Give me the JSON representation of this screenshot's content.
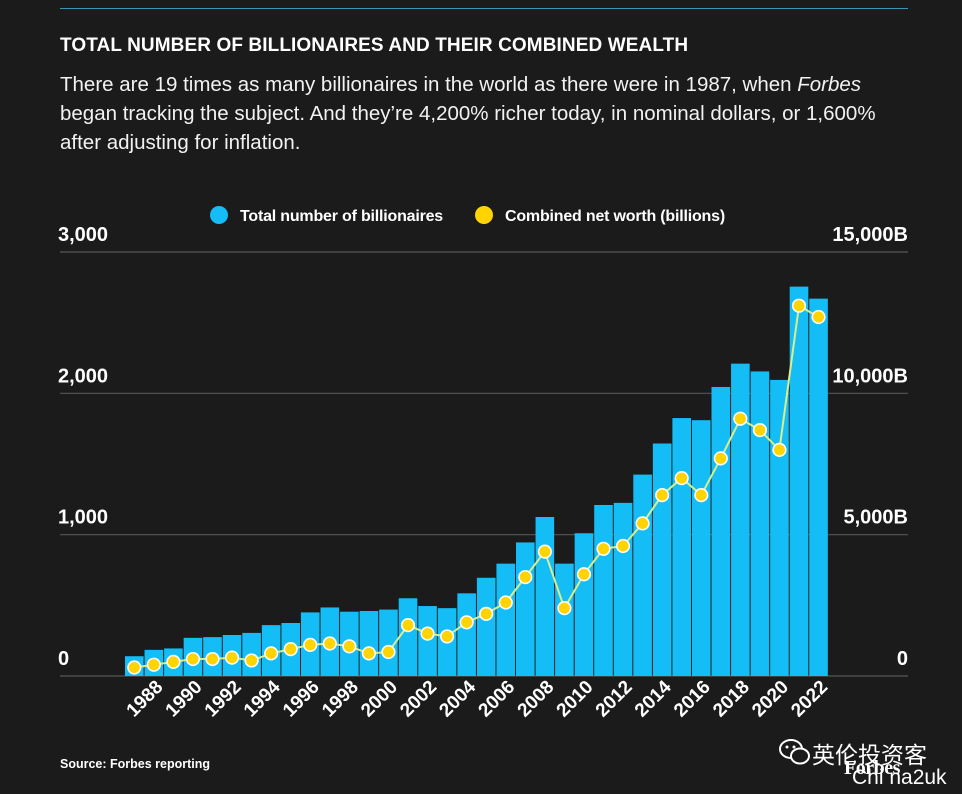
{
  "header": {
    "title": "TOTAL NUMBER OF BILLIONAIRES AND THEIR COMBINED WEALTH",
    "subtitle_part1": "There are 19 times as many billionaires in the world as there were in 1987, when ",
    "subtitle_italic": "Forbes",
    "subtitle_part2": " began tracking the subject. And they’re 4,200% richer today, in nominal dollars, or 1,600% after adjusting for inflation."
  },
  "footer": {
    "source": "Source: Forbes reporting",
    "brand": "Forbes"
  },
  "watermark": {
    "line1": "英伦投资客",
    "line2": "Chi na2uk"
  },
  "colors": {
    "bar": "#14bdf5",
    "line": "#d9ee8c",
    "dot": "#ffd400",
    "grid": "#555555",
    "background": "#1b1b1b"
  },
  "chart_data": {
    "type": "bar",
    "legend": [
      "Total number of billionaires",
      "Combined net worth (billions)"
    ],
    "left_ticks": [
      "0",
      "1,000",
      "2,000",
      "3,000"
    ],
    "right_ticks": [
      "0",
      "5,000B",
      "10,000B",
      "15,000B"
    ],
    "ylim_left": [
      0,
      3000
    ],
    "ylim_right": [
      0,
      15000
    ],
    "x_tick_labels": [
      "1988",
      "1990",
      "1992",
      "1994",
      "1996",
      "1998",
      "2000",
      "2002",
      "2004",
      "2006",
      "2008",
      "2010",
      "2012",
      "2014",
      "2016",
      "2018",
      "2020",
      "2022"
    ],
    "years": [
      1987,
      1988,
      1989,
      1990,
      1991,
      1992,
      1993,
      1994,
      1995,
      1996,
      1997,
      1998,
      1999,
      2000,
      2001,
      2002,
      2003,
      2004,
      2005,
      2006,
      2007,
      2008,
      2009,
      2010,
      2011,
      2012,
      2013,
      2014,
      2015,
      2016,
      2017,
      2018,
      2019,
      2020,
      2021,
      2022
    ],
    "series": [
      {
        "name": "Total number of billionaires",
        "axis": "left",
        "values": [
          140,
          185,
          195,
          270,
          275,
          290,
          305,
          360,
          375,
          450,
          485,
          455,
          460,
          470,
          550,
          495,
          480,
          585,
          695,
          795,
          945,
          1125,
          795,
          1010,
          1210,
          1225,
          1425,
          1645,
          1825,
          1810,
          2045,
          2210,
          2155,
          2095,
          2755,
          2670
        ]
      },
      {
        "name": "Combined net worth (billions)",
        "axis": "right",
        "values": [
          300,
          400,
          500,
          600,
          600,
          650,
          550,
          800,
          950,
          1100,
          1150,
          1050,
          800,
          850,
          1800,
          1500,
          1400,
          1900,
          2200,
          2600,
          3500,
          4400,
          2400,
          3600,
          4500,
          4600,
          5400,
          6400,
          7000,
          6400,
          7700,
          9100,
          8700,
          8000,
          13100,
          12700
        ]
      }
    ]
  }
}
